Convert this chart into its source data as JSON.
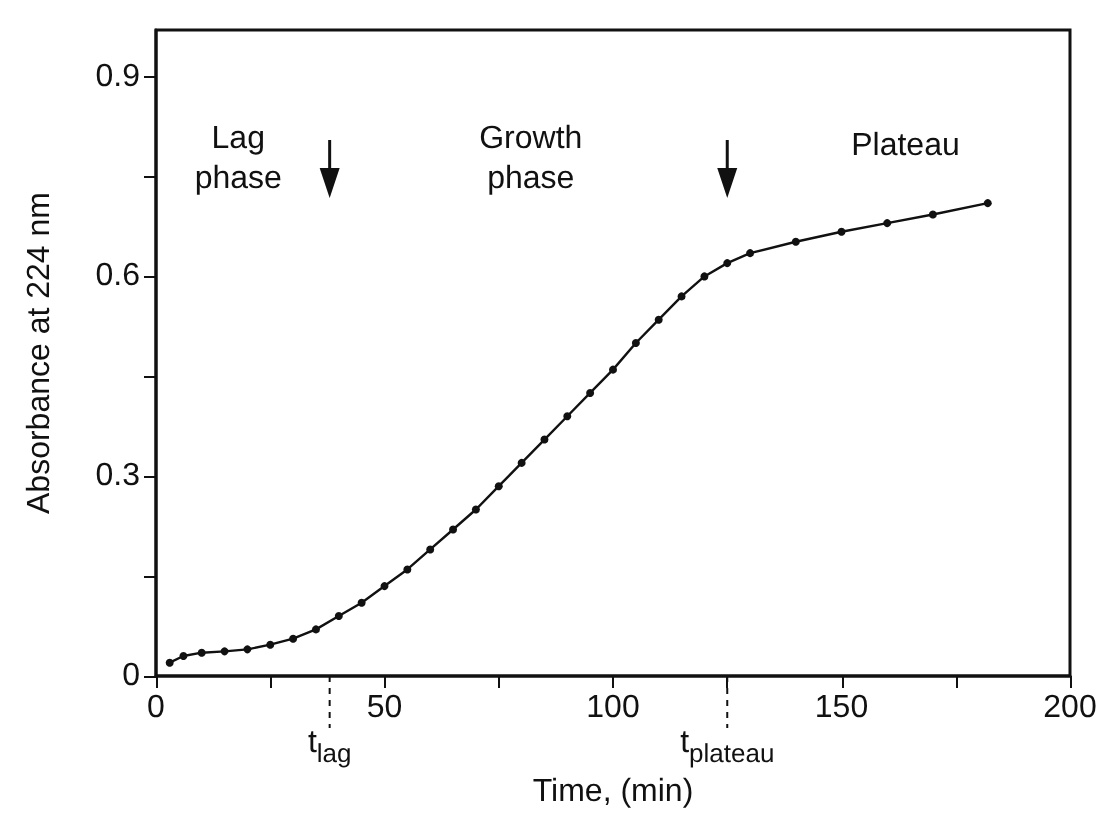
{
  "chart_data": {
    "type": "line",
    "xlabel": "Time, (min)",
    "ylabel": "Absorbance at 224 nm",
    "x": [
      3,
      6,
      10,
      15,
      20,
      25,
      30,
      35,
      40,
      45,
      50,
      55,
      60,
      65,
      70,
      75,
      80,
      85,
      90,
      95,
      100,
      105,
      110,
      115,
      120,
      125,
      130,
      140,
      150,
      160,
      170,
      182
    ],
    "series": [
      {
        "color": "#111111",
        "values": [
          0.02,
          0.03,
          0.035,
          0.037,
          0.04,
          0.047,
          0.056,
          0.07,
          0.09,
          0.11,
          0.135,
          0.16,
          0.19,
          0.22,
          0.25,
          0.285,
          0.32,
          0.355,
          0.39,
          0.425,
          0.46,
          0.5,
          0.535,
          0.57,
          0.6,
          0.62,
          0.635,
          0.652,
          0.667,
          0.68,
          0.693,
          0.71
        ]
      }
    ],
    "xlim": [
      0,
      200
    ],
    "xticks": [
      0,
      {
        "value": 25,
        "label": null
      },
      50,
      {
        "value": 75,
        "label": null
      },
      100,
      {
        "value": 125,
        "label": null
      },
      150,
      {
        "value": 175,
        "label": null
      },
      200
    ],
    "ylim": [
      0,
      0.97
    ],
    "yticks": [
      0,
      {
        "value": 0.15,
        "label": null
      },
      0.3,
      {
        "value": 0.45,
        "label": null
      },
      0.6,
      {
        "value": 0.75,
        "label": null
      },
      0.9
    ],
    "grid": false,
    "marker": "circle",
    "line_style": "solid",
    "ref_lines": [
      {
        "axis": "x",
        "value": 38,
        "label": "t$_{lag}$",
        "line_style": "dashed"
      },
      {
        "axis": "x",
        "value": 125,
        "label": "t$_{plateau}$",
        "line_style": "dashed"
      }
    ],
    "annotations": [
      "Lag\nphase",
      "Growth\nphase",
      "Plateau"
    ]
  }
}
